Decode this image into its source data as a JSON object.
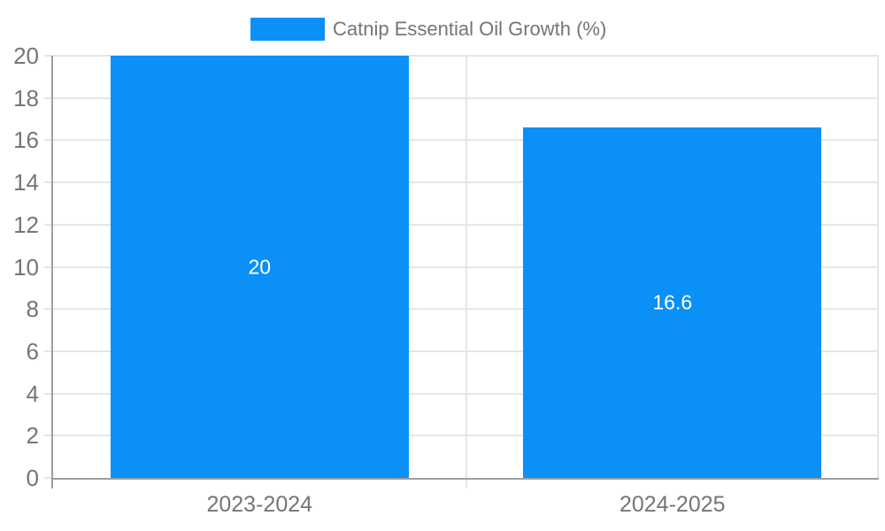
{
  "legend": {
    "label": "Catnip Essential Oil Growth (%)"
  },
  "chart_data": {
    "type": "bar",
    "title": "",
    "xlabel": "",
    "ylabel": "",
    "categories": [
      "2023-2024",
      "2024-2025"
    ],
    "series": [
      {
        "name": "Catnip Essential Oil Growth (%)",
        "values": [
          20,
          16.6
        ],
        "labels": [
          "20",
          "16.6"
        ]
      }
    ],
    "ylim": [
      0,
      20
    ],
    "yticks": [
      0,
      2,
      4,
      6,
      8,
      10,
      12,
      14,
      16,
      18,
      20
    ],
    "grid": true,
    "legend_position": "top",
    "colors": {
      "bar": "#0b90f8",
      "grid": "#e6e6e6",
      "axis": "#9e9e9e",
      "tick_label": "#757575",
      "legend_text": "#757575",
      "bar_label": "#ffffff",
      "background": "#ffffff"
    }
  }
}
